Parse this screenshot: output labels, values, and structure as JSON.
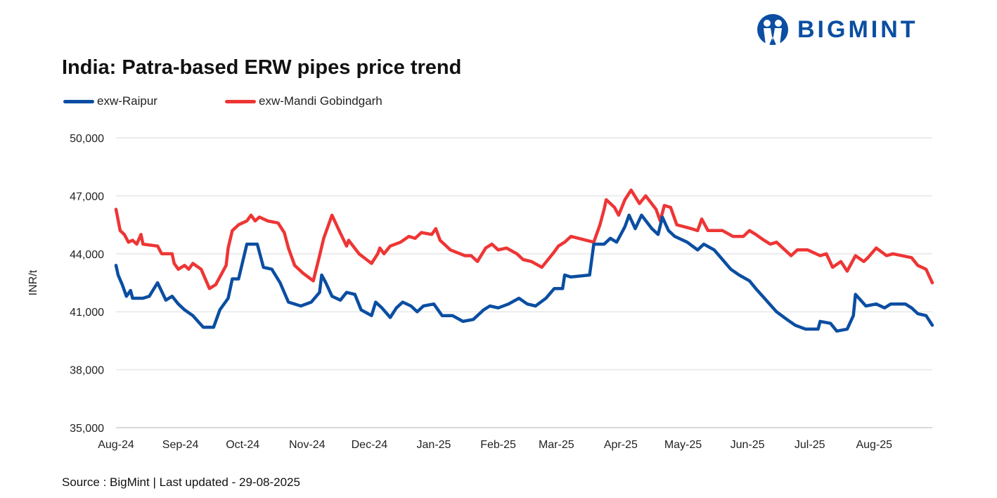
{
  "brand": {
    "name": "BIGMINT",
    "color": "#0b4ea2"
  },
  "source_text": "Source : BigMint | Last updated - 29-08-2025",
  "chart_data": {
    "type": "line",
    "title": "India: Patra-based ERW pipes price trend",
    "ylabel": "INR/t",
    "xlabel": "",
    "ylim": [
      35000,
      50000
    ],
    "yticks": [
      35000,
      38000,
      41000,
      44000,
      47000,
      50000
    ],
    "ytick_labels": [
      "35,000",
      "38,000",
      "41,000",
      "44,000",
      "47,000",
      "50,000"
    ],
    "xlim": [
      "2024-08-01",
      "2025-08-29"
    ],
    "xticks": [
      "2024-08-01",
      "2024-09-01",
      "2024-10-01",
      "2024-11-01",
      "2024-12-01",
      "2025-01-01",
      "2025-02-01",
      "2025-03-01",
      "2025-04-01",
      "2025-05-01",
      "2025-06-01",
      "2025-07-01",
      "2025-08-01"
    ],
    "xtick_labels": [
      "Aug-24",
      "Sep-24",
      "Oct-24",
      "Nov-24",
      "Dec-24",
      "Jan-25",
      "Feb-25",
      "Mar-25",
      "Apr-25",
      "May-25",
      "Jun-25",
      "Jul-25",
      "Aug-25"
    ],
    "grid": "horizontal",
    "legend_position": "top-left",
    "series": [
      {
        "name": "exw-Raipur",
        "color": "#0b4ea2",
        "points": [
          [
            "2024-08-01",
            43400
          ],
          [
            "2024-08-02",
            42900
          ],
          [
            "2024-08-04",
            42400
          ],
          [
            "2024-08-06",
            41800
          ],
          [
            "2024-08-08",
            42100
          ],
          [
            "2024-08-09",
            41700
          ],
          [
            "2024-08-14",
            41700
          ],
          [
            "2024-08-17",
            41800
          ],
          [
            "2024-08-21",
            42500
          ],
          [
            "2024-08-25",
            41600
          ],
          [
            "2024-08-28",
            41800
          ],
          [
            "2024-08-31",
            41400
          ],
          [
            "2024-09-03",
            41100
          ],
          [
            "2024-09-07",
            40800
          ],
          [
            "2024-09-12",
            40200
          ],
          [
            "2024-09-17",
            40200
          ],
          [
            "2024-09-20",
            41100
          ],
          [
            "2024-09-24",
            41700
          ],
          [
            "2024-09-26",
            42700
          ],
          [
            "2024-09-29",
            42700
          ],
          [
            "2024-10-03",
            44500
          ],
          [
            "2024-10-08",
            44500
          ],
          [
            "2024-10-11",
            43300
          ],
          [
            "2024-10-15",
            43200
          ],
          [
            "2024-10-19",
            42500
          ],
          [
            "2024-10-23",
            41500
          ],
          [
            "2024-10-29",
            41300
          ],
          [
            "2024-11-03",
            41500
          ],
          [
            "2024-11-07",
            42000
          ],
          [
            "2024-11-08",
            42900
          ],
          [
            "2024-11-10",
            42500
          ],
          [
            "2024-11-13",
            41800
          ],
          [
            "2024-11-17",
            41600
          ],
          [
            "2024-11-20",
            42000
          ],
          [
            "2024-11-24",
            41900
          ],
          [
            "2024-11-27",
            41100
          ],
          [
            "2024-12-02",
            40800
          ],
          [
            "2024-12-04",
            41500
          ],
          [
            "2024-12-07",
            41200
          ],
          [
            "2024-12-11",
            40700
          ],
          [
            "2024-12-14",
            41200
          ],
          [
            "2024-12-17",
            41500
          ],
          [
            "2024-12-21",
            41300
          ],
          [
            "2024-12-24",
            41000
          ],
          [
            "2024-12-27",
            41300
          ],
          [
            "2025-01-01",
            41400
          ],
          [
            "2025-01-05",
            40800
          ],
          [
            "2025-01-10",
            40800
          ],
          [
            "2025-01-15",
            40500
          ],
          [
            "2025-01-20",
            40600
          ],
          [
            "2025-01-25",
            41100
          ],
          [
            "2025-01-28",
            41300
          ],
          [
            "2025-02-01",
            41200
          ],
          [
            "2025-02-06",
            41400
          ],
          [
            "2025-02-11",
            41700
          ],
          [
            "2025-02-15",
            41400
          ],
          [
            "2025-02-19",
            41300
          ],
          [
            "2025-02-24",
            41700
          ],
          [
            "2025-02-28",
            42200
          ],
          [
            "2025-03-04",
            42200
          ],
          [
            "2025-03-05",
            42900
          ],
          [
            "2025-03-08",
            42800
          ],
          [
            "2025-03-17",
            42900
          ],
          [
            "2025-03-19",
            44500
          ],
          [
            "2025-03-24",
            44500
          ],
          [
            "2025-03-27",
            44800
          ],
          [
            "2025-03-30",
            44600
          ],
          [
            "2025-04-03",
            45400
          ],
          [
            "2025-04-05",
            46000
          ],
          [
            "2025-04-08",
            45300
          ],
          [
            "2025-04-11",
            46000
          ],
          [
            "2025-04-16",
            45300
          ],
          [
            "2025-04-19",
            45000
          ],
          [
            "2025-04-21",
            45900
          ],
          [
            "2025-04-24",
            45200
          ],
          [
            "2025-04-27",
            44900
          ],
          [
            "2025-05-03",
            44600
          ],
          [
            "2025-05-08",
            44200
          ],
          [
            "2025-05-11",
            44500
          ],
          [
            "2025-05-16",
            44200
          ],
          [
            "2025-05-20",
            43700
          ],
          [
            "2025-05-24",
            43200
          ],
          [
            "2025-05-28",
            42900
          ],
          [
            "2025-06-02",
            42600
          ],
          [
            "2025-06-05",
            42200
          ],
          [
            "2025-06-10",
            41600
          ],
          [
            "2025-06-15",
            41000
          ],
          [
            "2025-06-20",
            40600
          ],
          [
            "2025-06-24",
            40300
          ],
          [
            "2025-06-29",
            40100
          ],
          [
            "2025-07-05",
            40100
          ],
          [
            "2025-07-06",
            40500
          ],
          [
            "2025-07-11",
            40400
          ],
          [
            "2025-07-14",
            40000
          ],
          [
            "2025-07-19",
            40100
          ],
          [
            "2025-07-22",
            40800
          ],
          [
            "2025-07-23",
            41900
          ],
          [
            "2025-07-28",
            41300
          ],
          [
            "2025-08-02",
            41400
          ],
          [
            "2025-08-06",
            41200
          ],
          [
            "2025-08-09",
            41400
          ],
          [
            "2025-08-16",
            41400
          ],
          [
            "2025-08-19",
            41200
          ],
          [
            "2025-08-22",
            40900
          ],
          [
            "2025-08-26",
            40800
          ],
          [
            "2025-08-29",
            40300
          ]
        ]
      },
      {
        "name": "exw-Mandi Gobindgarh",
        "color": "#ee3535",
        "points": [
          [
            "2024-08-01",
            46300
          ],
          [
            "2024-08-03",
            45200
          ],
          [
            "2024-08-05",
            45000
          ],
          [
            "2024-08-07",
            44600
          ],
          [
            "2024-08-09",
            44700
          ],
          [
            "2024-08-11",
            44500
          ],
          [
            "2024-08-13",
            45000
          ],
          [
            "2024-08-14",
            44500
          ],
          [
            "2024-08-21",
            44400
          ],
          [
            "2024-08-23",
            44000
          ],
          [
            "2024-08-28",
            44000
          ],
          [
            "2024-08-29",
            43500
          ],
          [
            "2024-08-31",
            43200
          ],
          [
            "2024-09-03",
            43400
          ],
          [
            "2024-09-05",
            43200
          ],
          [
            "2024-09-07",
            43500
          ],
          [
            "2024-09-11",
            43200
          ],
          [
            "2024-09-15",
            42200
          ],
          [
            "2024-09-18",
            42400
          ],
          [
            "2024-09-20",
            42800
          ],
          [
            "2024-09-23",
            43400
          ],
          [
            "2024-09-24",
            44300
          ],
          [
            "2024-09-26",
            45200
          ],
          [
            "2024-09-29",
            45500
          ],
          [
            "2024-10-03",
            45700
          ],
          [
            "2024-10-05",
            46000
          ],
          [
            "2024-10-07",
            45700
          ],
          [
            "2024-10-09",
            45900
          ],
          [
            "2024-10-13",
            45700
          ],
          [
            "2024-10-18",
            45600
          ],
          [
            "2024-10-21",
            45100
          ],
          [
            "2024-10-23",
            44300
          ],
          [
            "2024-10-26",
            43400
          ],
          [
            "2024-10-30",
            43000
          ],
          [
            "2024-11-04",
            42600
          ],
          [
            "2024-11-07",
            43900
          ],
          [
            "2024-11-09",
            44800
          ],
          [
            "2024-11-13",
            46000
          ],
          [
            "2024-11-16",
            45300
          ],
          [
            "2024-11-20",
            44400
          ],
          [
            "2024-11-21",
            44700
          ],
          [
            "2024-11-26",
            44000
          ],
          [
            "2024-12-02",
            43500
          ],
          [
            "2024-12-05",
            44000
          ],
          [
            "2024-12-06",
            44300
          ],
          [
            "2024-12-08",
            44000
          ],
          [
            "2024-12-11",
            44400
          ],
          [
            "2024-12-16",
            44600
          ],
          [
            "2024-12-20",
            44900
          ],
          [
            "2024-12-23",
            44800
          ],
          [
            "2024-12-26",
            45100
          ],
          [
            "2024-12-31",
            45000
          ],
          [
            "2025-01-02",
            45300
          ],
          [
            "2025-01-04",
            44700
          ],
          [
            "2025-01-09",
            44200
          ],
          [
            "2025-01-16",
            43900
          ],
          [
            "2025-01-19",
            43900
          ],
          [
            "2025-01-22",
            43600
          ],
          [
            "2025-01-26",
            44300
          ],
          [
            "2025-01-29",
            44500
          ],
          [
            "2025-02-01",
            44200
          ],
          [
            "2025-02-05",
            44300
          ],
          [
            "2025-02-10",
            44000
          ],
          [
            "2025-02-13",
            43700
          ],
          [
            "2025-02-17",
            43600
          ],
          [
            "2025-02-22",
            43300
          ],
          [
            "2025-02-25",
            43700
          ],
          [
            "2025-02-28",
            44100
          ],
          [
            "2025-03-02",
            44400
          ],
          [
            "2025-03-05",
            44600
          ],
          [
            "2025-03-08",
            44900
          ],
          [
            "2025-03-19",
            44600
          ],
          [
            "2025-03-22",
            45500
          ],
          [
            "2025-03-24",
            46300
          ],
          [
            "2025-03-25",
            46800
          ],
          [
            "2025-03-29",
            46400
          ],
          [
            "2025-03-31",
            46000
          ],
          [
            "2025-04-03",
            46800
          ],
          [
            "2025-04-06",
            47300
          ],
          [
            "2025-04-10",
            46600
          ],
          [
            "2025-04-13",
            47000
          ],
          [
            "2025-04-18",
            46300
          ],
          [
            "2025-04-20",
            45700
          ],
          [
            "2025-04-22",
            46500
          ],
          [
            "2025-04-25",
            46400
          ],
          [
            "2025-04-28",
            45500
          ],
          [
            "2025-05-05",
            45300
          ],
          [
            "2025-05-08",
            45200
          ],
          [
            "2025-05-10",
            45800
          ],
          [
            "2025-05-13",
            45200
          ],
          [
            "2025-05-20",
            45200
          ],
          [
            "2025-05-25",
            44900
          ],
          [
            "2025-05-30",
            44900
          ],
          [
            "2025-06-02",
            45200
          ],
          [
            "2025-06-05",
            45000
          ],
          [
            "2025-06-09",
            44700
          ],
          [
            "2025-06-12",
            44500
          ],
          [
            "2025-06-15",
            44600
          ],
          [
            "2025-06-19",
            44200
          ],
          [
            "2025-06-22",
            43900
          ],
          [
            "2025-06-25",
            44200
          ],
          [
            "2025-06-30",
            44200
          ],
          [
            "2025-07-06",
            43900
          ],
          [
            "2025-07-09",
            44000
          ],
          [
            "2025-07-12",
            43300
          ],
          [
            "2025-07-16",
            43600
          ],
          [
            "2025-07-19",
            43100
          ],
          [
            "2025-07-23",
            43900
          ],
          [
            "2025-07-27",
            43600
          ],
          [
            "2025-07-29",
            43800
          ],
          [
            "2025-08-02",
            44300
          ],
          [
            "2025-08-07",
            43900
          ],
          [
            "2025-08-10",
            44000
          ],
          [
            "2025-08-19",
            43800
          ],
          [
            "2025-08-22",
            43400
          ],
          [
            "2025-08-26",
            43200
          ],
          [
            "2025-08-29",
            42500
          ]
        ]
      }
    ]
  }
}
